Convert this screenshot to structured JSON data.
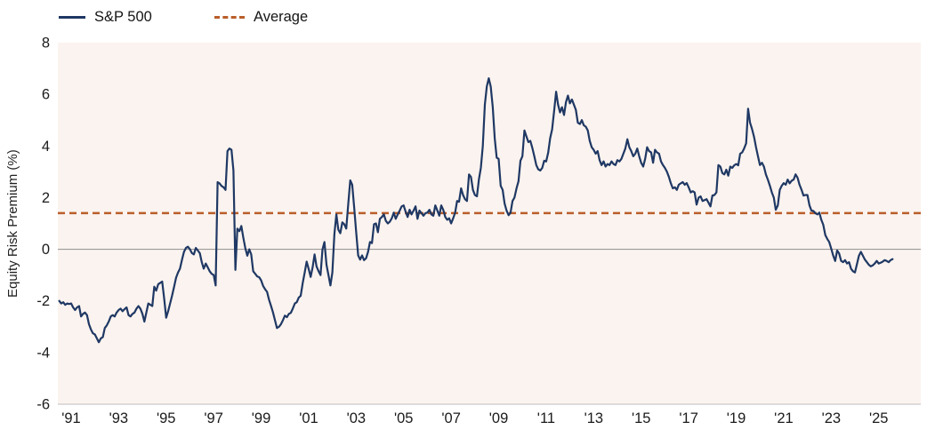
{
  "chart_data": {
    "type": "line",
    "title": "",
    "ylabel": "Equity Risk Premium (%)",
    "ylim": [
      -6,
      8
    ],
    "y_ticks": [
      8,
      6,
      4,
      2,
      0,
      -2,
      -4,
      -6
    ],
    "x_tick_labels": [
      "'91",
      "'93",
      "'95",
      "'97",
      "'99",
      "'01",
      "'03",
      "'05",
      "'07",
      "'09",
      "'11",
      "'13",
      "'15",
      "'17",
      "'19",
      "'21",
      "'23",
      "'25"
    ],
    "x_tick_years": [
      1991,
      1993,
      1995,
      1997,
      1999,
      2001,
      2003,
      2005,
      2007,
      2009,
      2011,
      2013,
      2015,
      2017,
      2019,
      2021,
      2023,
      2025
    ],
    "grid": "zero-line-only",
    "legend_position": "top-left",
    "legend": [
      {
        "label": "S&P 500",
        "style": "solid",
        "color": "#1F3864"
      },
      {
        "label": "Average",
        "style": "dashed",
        "color": "#BA5E2A"
      }
    ],
    "average_value": 1.4,
    "series": [
      {
        "name": "S&P 500",
        "frequency": "monthly",
        "start": 1990.5,
        "values": [
          -2.0,
          -2.1,
          -2.05,
          -2.15,
          -2.1,
          -2.12,
          -2.1,
          -2.25,
          -2.35,
          -2.25,
          -2.2,
          -2.6,
          -2.5,
          -2.45,
          -2.55,
          -2.9,
          -3.1,
          -3.25,
          -3.3,
          -3.45,
          -3.6,
          -3.45,
          -3.4,
          -3.05,
          -2.95,
          -2.8,
          -2.6,
          -2.55,
          -2.6,
          -2.45,
          -2.35,
          -2.3,
          -2.4,
          -2.32,
          -2.25,
          -2.55,
          -2.6,
          -2.5,
          -2.45,
          -2.3,
          -2.2,
          -2.3,
          -2.5,
          -2.8,
          -2.45,
          -2.1,
          -2.15,
          -2.2,
          -1.45,
          -1.6,
          -1.35,
          -1.3,
          -1.25,
          -1.9,
          -2.65,
          -2.4,
          -2.1,
          -1.8,
          -1.45,
          -1.1,
          -0.9,
          -0.75,
          -0.4,
          -0.1,
          0.05,
          0.1,
          0.0,
          -0.15,
          -0.2,
          0.05,
          -0.05,
          -0.15,
          -0.5,
          -0.75,
          -0.55,
          -0.7,
          -0.85,
          -0.95,
          -1.0,
          -1.4,
          2.6,
          2.55,
          2.45,
          2.4,
          2.3,
          3.8,
          3.9,
          3.85,
          3.05,
          -0.8,
          0.8,
          0.7,
          0.9,
          0.45,
          0.05,
          -0.25,
          0.0,
          -0.2,
          -0.85,
          -0.95,
          -1.05,
          -1.08,
          -1.2,
          -1.42,
          -1.55,
          -1.65,
          -1.95,
          -2.2,
          -2.45,
          -2.75,
          -3.05,
          -3.0,
          -2.9,
          -2.75,
          -2.57,
          -2.63,
          -2.5,
          -2.46,
          -2.3,
          -2.1,
          -2.05,
          -1.87,
          -1.8,
          -1.3,
          -0.9,
          -0.48,
          -0.75,
          -1.07,
          -0.7,
          -0.2,
          -0.66,
          -0.85,
          -1.0,
          0.0,
          0.28,
          -0.6,
          -1.0,
          -1.4,
          -0.9,
          0.6,
          1.35,
          0.76,
          0.62,
          1.04,
          0.97,
          0.8,
          1.73,
          2.67,
          2.5,
          1.63,
          0.69,
          -0.24,
          -0.4,
          -0.24,
          -0.42,
          -0.35,
          -0.1,
          0.28,
          0.24,
          0.97,
          1.0,
          0.66,
          1.18,
          1.25,
          1.35,
          1.1,
          1.0,
          1.07,
          1.2,
          1.42,
          1.18,
          1.35,
          1.5,
          1.66,
          1.7,
          1.45,
          1.25,
          1.53,
          1.35,
          1.5,
          1.66,
          1.18,
          1.5,
          1.4,
          1.3,
          1.4,
          1.42,
          1.53,
          1.35,
          1.3,
          1.7,
          1.5,
          1.3,
          1.7,
          1.53,
          1.25,
          1.14,
          1.2,
          1.0,
          1.2,
          1.42,
          1.87,
          1.84,
          2.36,
          2.1,
          1.94,
          1.87,
          2.9,
          2.8,
          2.3,
          2.1,
          2.05,
          2.7,
          3.15,
          4.0,
          5.6,
          6.3,
          6.62,
          6.3,
          5.5,
          4.3,
          3.55,
          3.5,
          2.46,
          2.3,
          1.77,
          1.5,
          1.32,
          1.42,
          1.87,
          2.0,
          2.36,
          2.63,
          3.43,
          3.6,
          4.6,
          4.37,
          4.15,
          4.2,
          3.92,
          3.6,
          3.26,
          3.1,
          3.05,
          3.15,
          3.43,
          3.4,
          3.74,
          4.3,
          4.64,
          5.33,
          6.1,
          5.6,
          5.3,
          5.5,
          5.2,
          5.7,
          5.95,
          5.65,
          5.8,
          5.6,
          5.4,
          4.9,
          4.85,
          5.0,
          4.8,
          4.75,
          4.6,
          4.2,
          3.95,
          3.85,
          3.7,
          3.8,
          3.45,
          3.26,
          3.4,
          3.2,
          3.3,
          3.26,
          3.4,
          3.3,
          3.26,
          3.45,
          3.4,
          3.5,
          3.7,
          3.9,
          4.26,
          3.95,
          3.8,
          3.6,
          3.7,
          3.9,
          3.6,
          3.35,
          3.2,
          3.5,
          3.95,
          3.8,
          3.75,
          3.35,
          3.85,
          3.75,
          3.7,
          3.4,
          3.26,
          3.15,
          3.0,
          2.8,
          2.55,
          2.36,
          2.4,
          2.3,
          2.5,
          2.55,
          2.6,
          2.5,
          2.56,
          2.4,
          2.2,
          2.25,
          2.2,
          1.73,
          2.0,
          2.05,
          1.87,
          1.9,
          1.94,
          1.8,
          1.66,
          2.08,
          2.1,
          2.2,
          3.26,
          3.2,
          2.95,
          2.9,
          3.08,
          2.85,
          3.2,
          3.15,
          3.25,
          3.3,
          3.25,
          3.7,
          3.75,
          3.9,
          4.1,
          5.44,
          4.9,
          4.66,
          4.35,
          3.95,
          3.6,
          3.26,
          3.35,
          3.2,
          2.9,
          2.7,
          2.46,
          2.2,
          2.0,
          1.53,
          1.7,
          2.3,
          2.46,
          2.56,
          2.5,
          2.7,
          2.55,
          2.65,
          2.7,
          2.9,
          2.77,
          2.5,
          2.3,
          2.08,
          2.1,
          2.1,
          1.7,
          1.5,
          1.48,
          1.4,
          1.35,
          1.42,
          1.14,
          0.95,
          0.55,
          0.4,
          0.28,
          0.03,
          -0.25,
          -0.45,
          -0.05,
          -0.16,
          -0.45,
          -0.5,
          -0.42,
          -0.55,
          -0.5,
          -0.75,
          -0.85,
          -0.9,
          -0.57,
          -0.25,
          -0.1,
          -0.25,
          -0.4,
          -0.5,
          -0.6,
          -0.66,
          -0.62,
          -0.55,
          -0.45,
          -0.55,
          -0.52,
          -0.48,
          -0.42,
          -0.45,
          -0.5,
          -0.42,
          -0.38
        ]
      }
    ],
    "colors": {
      "line": "#1F3864",
      "average": "#BA5E2A",
      "plot_bg": "#FBF3EF",
      "zero_line": "#9B9B9B",
      "axis_line": "#C9C9C9",
      "text": "#1B1B1B"
    }
  }
}
